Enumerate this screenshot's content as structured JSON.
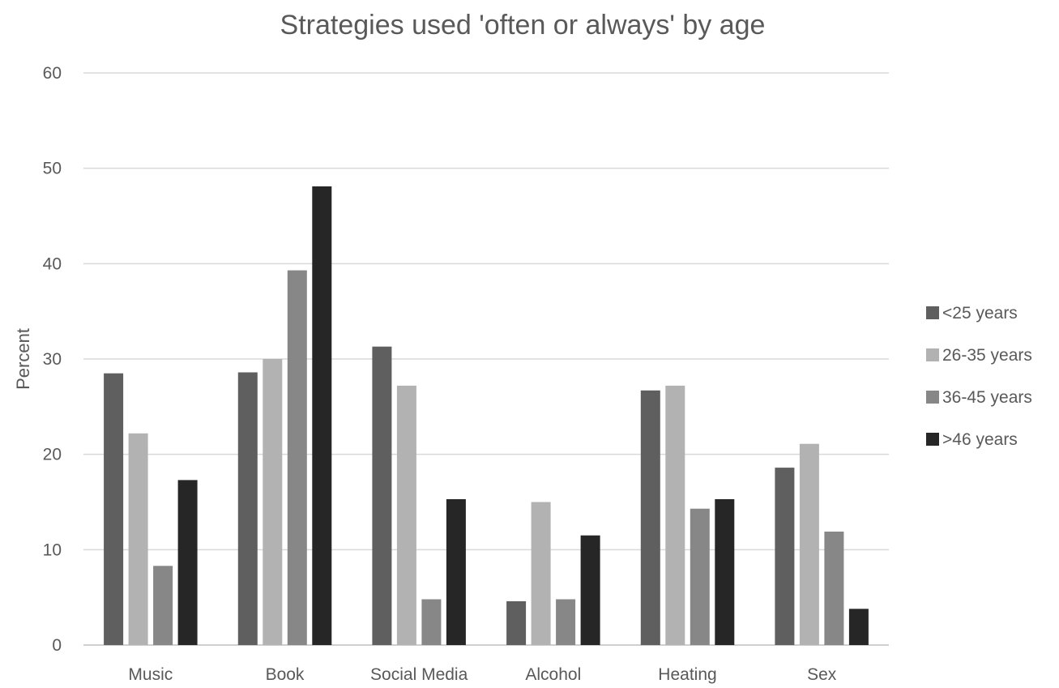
{
  "chart_data": {
    "type": "bar",
    "title": "Strategies used 'often or always' by age",
    "xlabel": "",
    "ylabel": "Percent",
    "ylim": [
      0,
      60
    ],
    "yticks": [
      0,
      10,
      20,
      30,
      40,
      50,
      60
    ],
    "grid": true,
    "legend_position": "right",
    "categories": [
      "Music",
      "Book",
      "Social Media",
      "Alcohol",
      "Heating",
      "Sex"
    ],
    "series": [
      {
        "name": "<25 years",
        "color": "#5f5f5f",
        "values": [
          28.5,
          28.6,
          31.3,
          4.6,
          26.7,
          18.6
        ]
      },
      {
        "name": "26-35 years",
        "color": "#b2b2b2",
        "values": [
          22.2,
          30.0,
          27.2,
          15.0,
          27.2,
          21.1
        ]
      },
      {
        "name": "36-45 years",
        "color": "#878787",
        "values": [
          8.3,
          39.3,
          4.8,
          4.8,
          14.3,
          11.9
        ]
      },
      {
        "name": ">46 years",
        "color": "#262626",
        "values": [
          17.3,
          48.1,
          15.3,
          11.5,
          15.3,
          3.8
        ]
      }
    ]
  }
}
